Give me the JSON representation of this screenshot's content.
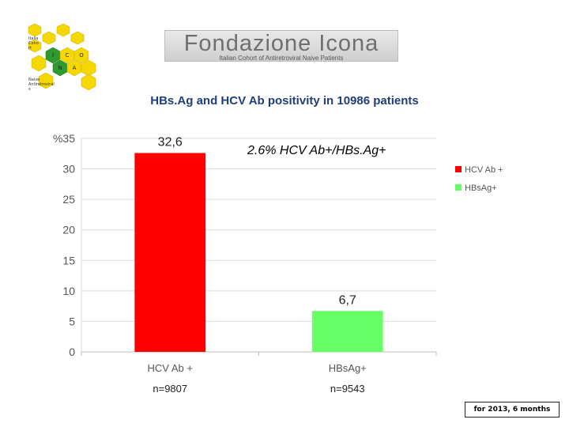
{
  "header": {
    "logo_hex_letters": [
      "I",
      "C",
      "O",
      "N",
      "A"
    ],
    "logo_hex_text_top": [
      "Italia",
      "Coho",
      "rt"
    ],
    "logo_hex_text_bottom": [
      "Naive",
      "Antiretroviral",
      "s"
    ],
    "banner_title": "Fondazione Icona",
    "banner_subtitle": "Italian Cohort of Antiretroviral Naive Patients"
  },
  "page_title": "HBs.Ag and HCV Ab positivity in 10986 patients",
  "annotation": "2.6%   HCV Ab+/HBs.Ag+",
  "footnote": "for 2013, 6 months",
  "colors": {
    "hcv": "#ff0000",
    "hbs": "#66ff66",
    "title": "#1f3e7a"
  },
  "chart_data": {
    "type": "bar",
    "categories": [
      "HCV Ab +",
      "HBsAg+"
    ],
    "values": [
      32.6,
      6.7
    ],
    "value_labels": [
      "32,6",
      "6,7"
    ],
    "n_labels": [
      "n=9807",
      "n=9543"
    ],
    "legend": [
      "HCV Ab +",
      "HBsAg+"
    ],
    "legend_position": "right",
    "ylabel": "%",
    "yticks": [
      0,
      5,
      10,
      15,
      20,
      25,
      30,
      35
    ],
    "ylim": [
      0,
      35
    ],
    "grid": true
  }
}
